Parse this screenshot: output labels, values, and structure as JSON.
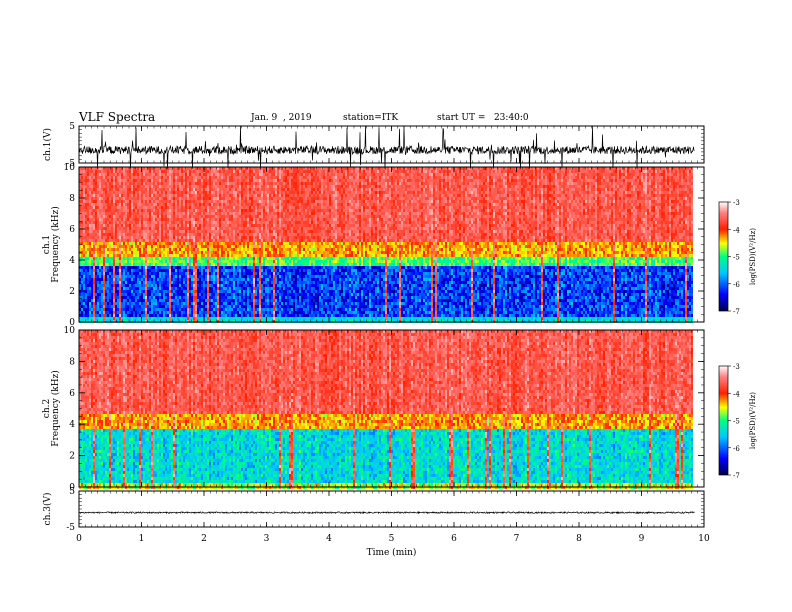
{
  "header": {
    "title": "VLF Spectra",
    "date": "Jan. 9  , 2019",
    "station": "station=ITK",
    "start_ut": "start UT =   23:40:0"
  },
  "chart_data": [
    {
      "panel": "ch1-waveform",
      "type": "line",
      "ylabel": "ch.1(V)",
      "yticks": [
        "5",
        "-5"
      ],
      "ylim": [
        -5,
        5
      ],
      "baseline": -1.5
    },
    {
      "panel": "ch1-spectrogram",
      "type": "heatmap",
      "ylabel": "ch.1 Frequency (kHz)",
      "ylim": [
        0,
        10
      ],
      "yticks": [
        "0",
        "2",
        "4",
        "6",
        "8",
        "10"
      ],
      "colorbar": {
        "label": "log(PSD)(V²/Hz)",
        "ticks": [
          "-3",
          "-4",
          "-5",
          "-6",
          "-7"
        ],
        "range": [
          -7,
          -3
        ]
      },
      "colorscale": [
        "#000060",
        "#0000ff",
        "#00c8ff",
        "#00ff80",
        "#ffff00",
        "#ff2000",
        "#ff9090",
        "#ffffff"
      ]
    },
    {
      "panel": "ch2-spectrogram",
      "type": "heatmap",
      "ylabel": "ch.2 Frequency (kHz)",
      "ylim": [
        0,
        10
      ],
      "yticks": [
        "0",
        "2",
        "4",
        "6",
        "8",
        "10"
      ],
      "colorbar": {
        "label": "log(PSD)(V²/Hz)",
        "ticks": [
          "-3",
          "-4",
          "-5",
          "-6",
          "-7"
        ],
        "range": [
          -7,
          -3
        ]
      }
    },
    {
      "panel": "ch3-waveform",
      "type": "line",
      "ylabel": "ch.3(V)",
      "yticks": [
        "5",
        "-5"
      ],
      "ylim": [
        -5,
        5
      ],
      "baseline": -1.0
    }
  ],
  "xaxis": {
    "label": "Time (min)",
    "ticks": [
      "0",
      "1",
      "2",
      "3",
      "4",
      "5",
      "6",
      "7",
      "8",
      "9",
      "10"
    ],
    "xlim": [
      0,
      10
    ],
    "data_end": 9.85
  }
}
